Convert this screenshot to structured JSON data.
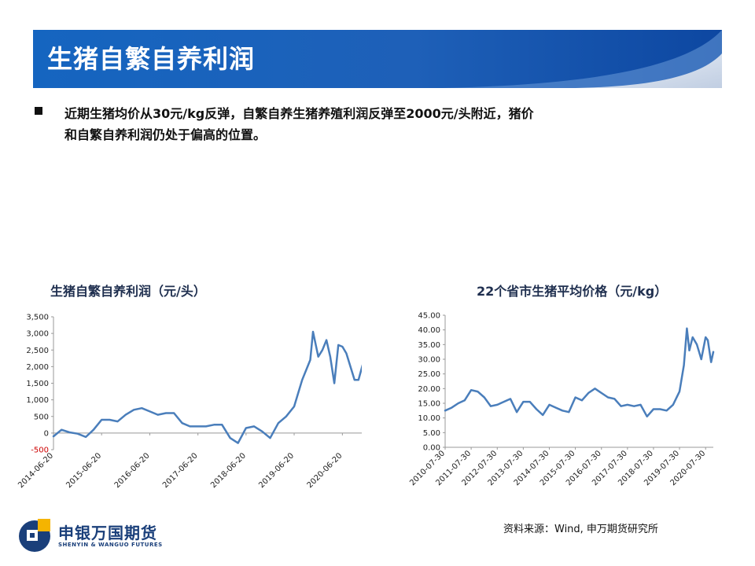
{
  "title": "生猪自繁自养利润",
  "bullet": {
    "line1": "近期生猪均价从30元/kg反弹，自繁自养生猪养殖利润反弹至2000元/头附近，猪价",
    "line2": "和自繁自养利润仍处于偏高的位置。"
  },
  "source": "资料来源：Wind, 申万期货研究所",
  "logo": {
    "cn": "申银万国期货",
    "en": "SHENYIN & WANGUO FUTURES"
  },
  "colors": {
    "banner": "#1565c0",
    "line": "#4a7ebb",
    "negative_tick": "#cc0000",
    "logo_blue": "#1a3f7a",
    "logo_yellow": "#f5b400"
  },
  "chart_data": [
    {
      "type": "line",
      "title": "生猪自繁自养利润（元/头）",
      "ylim": [
        -500,
        3500
      ],
      "yticks": [
        "-500",
        "0",
        "500",
        "1,000",
        "1,500",
        "2,000",
        "2,500",
        "3,000",
        "3,500"
      ],
      "xticks": [
        "2014-06-20",
        "2015-06-20",
        "2016-06-20",
        "2017-06-20",
        "2018-06-20",
        "2019-06-20",
        "2020-06-20"
      ],
      "grid": false,
      "series": [
        {
          "x": [
            "2014-06-20",
            "2014-08-20",
            "2014-10-20",
            "2014-12-20",
            "2015-02-20",
            "2015-04-20",
            "2015-06-20",
            "2015-08-20",
            "2015-10-20",
            "2015-12-20",
            "2016-02-20",
            "2016-04-20",
            "2016-06-20",
            "2016-08-20",
            "2016-10-20",
            "2016-12-20",
            "2017-02-20",
            "2017-04-20",
            "2017-06-20",
            "2017-08-20",
            "2017-10-20",
            "2017-12-20",
            "2018-02-20",
            "2018-04-20",
            "2018-06-20",
            "2018-08-20",
            "2018-10-20",
            "2018-12-20",
            "2019-02-20",
            "2019-04-20",
            "2019-06-20",
            "2019-08-20",
            "2019-10-20",
            "2019-11-10",
            "2019-12-20",
            "2020-01-20",
            "2020-02-20",
            "2020-03-20",
            "2020-04-20",
            "2020-05-20",
            "2020-06-20",
            "2020-07-20",
            "2020-08-20",
            "2020-09-20",
            "2020-10-20",
            "2020-11-20"
          ],
          "values": [
            -100,
            100,
            20,
            -20,
            -120,
            100,
            400,
            400,
            350,
            550,
            700,
            750,
            650,
            550,
            600,
            600,
            300,
            200,
            200,
            200,
            250,
            250,
            -150,
            -300,
            150,
            200,
            50,
            -150,
            300,
            500,
            800,
            1600,
            2200,
            3050,
            2300,
            2500,
            2800,
            2300,
            1500,
            2650,
            2600,
            2400,
            2000,
            1600,
            1600,
            2050
          ]
        }
      ]
    },
    {
      "type": "line",
      "title": "22个省市生猪平均价格（元/kg）",
      "ylim": [
        0,
        45
      ],
      "yticks": [
        "0.00",
        "5.00",
        "10.00",
        "15.00",
        "20.00",
        "25.00",
        "30.00",
        "35.00",
        "40.00",
        "45.00"
      ],
      "xticks": [
        "2010-07-30",
        "2011-07-30",
        "2012-07-30",
        "2013-07-30",
        "2014-07-30",
        "2015-07-30",
        "2016-07-30",
        "2017-07-30",
        "2018-07-30",
        "2019-07-30",
        "2020-07-30"
      ],
      "grid": false,
      "series": [
        {
          "x": [
            "2010-07-30",
            "2010-10-30",
            "2011-01-30",
            "2011-04-30",
            "2011-07-30",
            "2011-10-30",
            "2012-01-30",
            "2012-04-30",
            "2012-07-30",
            "2012-10-30",
            "2013-01-30",
            "2013-04-30",
            "2013-07-30",
            "2013-10-30",
            "2014-01-30",
            "2014-04-30",
            "2014-07-30",
            "2014-10-30",
            "2015-01-30",
            "2015-04-30",
            "2015-07-30",
            "2015-10-30",
            "2016-01-30",
            "2016-04-30",
            "2016-07-30",
            "2016-10-30",
            "2017-01-30",
            "2017-04-30",
            "2017-07-30",
            "2017-10-30",
            "2018-01-30",
            "2018-04-30",
            "2018-07-30",
            "2018-10-30",
            "2019-01-30",
            "2019-04-30",
            "2019-07-30",
            "2019-09-30",
            "2019-11-10",
            "2019-12-15",
            "2020-01-30",
            "2020-03-30",
            "2020-05-30",
            "2020-07-30",
            "2020-08-30",
            "2020-10-15",
            "2020-11-15"
          ],
          "values": [
            12.5,
            13.5,
            15.0,
            16.0,
            19.5,
            19.0,
            17.0,
            14.0,
            14.5,
            15.5,
            16.5,
            12.0,
            15.5,
            15.5,
            13.0,
            11.0,
            14.5,
            13.5,
            12.5,
            12.0,
            17.0,
            16.0,
            18.5,
            20.0,
            18.5,
            17.0,
            16.5,
            14.0,
            14.5,
            14.0,
            14.5,
            10.5,
            13.0,
            13.0,
            12.5,
            14.5,
            19.0,
            28.0,
            40.5,
            33.0,
            37.5,
            35.0,
            30.0,
            37.5,
            36.5,
            29.0,
            32.5
          ]
        }
      ]
    }
  ]
}
